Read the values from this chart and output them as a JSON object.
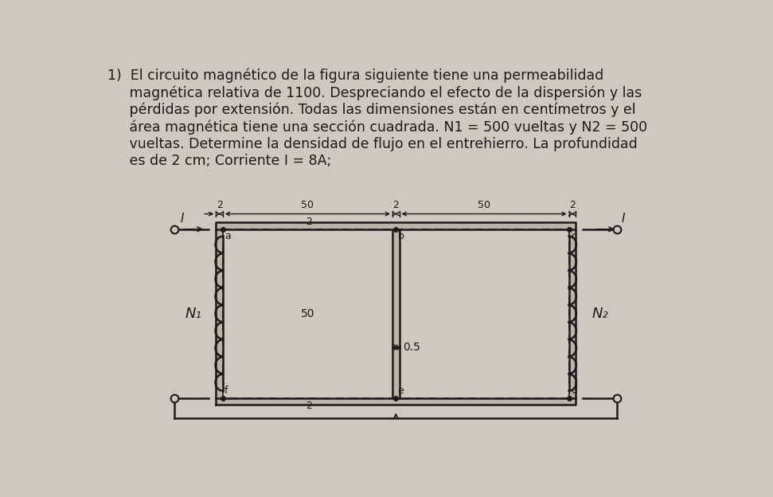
{
  "bg_color": "#cdc9c0",
  "line_color": "#1a1a1a",
  "text_lines": [
    "1)  El circuito magnético de la figura siguiente tiene una permeabilidad",
    "     magnética relativa de 1100. Despreciando el efecto de la dispersión y las",
    "     pérdidas por extensión. Todas las dimensiones están en centímetros y el",
    "     área magnética tiene una sección cuadrada. N1 = 500 vueltas y N2 = 500",
    "     vueltas. Determine la densidad de flujo en el entrehierro. La profundidad",
    "     es de 2 cm; Corriente I = 8A;"
  ],
  "N1_label": "N₁",
  "N2_label": "N₂",
  "font_size_text": 12.5,
  "font_size_label": 10,
  "font_size_dim": 9
}
